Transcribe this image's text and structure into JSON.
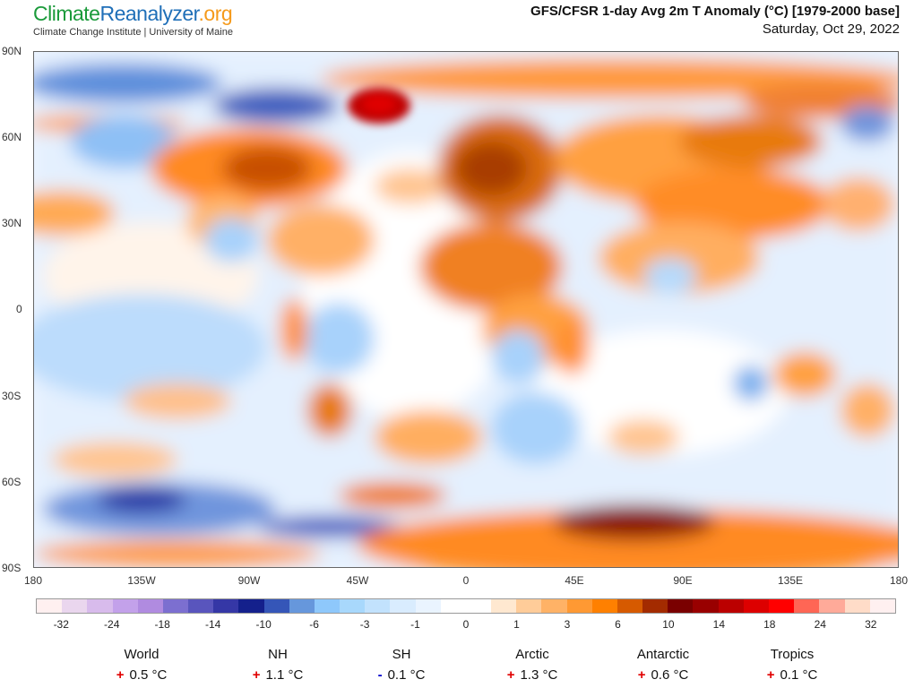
{
  "header": {
    "logo_parts": [
      "Climate",
      "Reanalyzer",
      ".org"
    ],
    "institution": "Climate Change Institute | University of Maine",
    "title": "GFS/CFSR 1-day Avg 2m T Anomaly (°C) [1979-2000 base]",
    "date": "Saturday, Oct 29, 2022"
  },
  "map": {
    "variable": "2m temperature anomaly",
    "lat_labels": [
      "90N",
      "60N",
      "30N",
      "0",
      "30S",
      "60S",
      "90S"
    ],
    "lon_labels": [
      "180",
      "135W",
      "90W",
      "45W",
      "0",
      "45E",
      "90E",
      "135E",
      "180"
    ]
  },
  "colorbar": {
    "colors": [
      "#fff0f0",
      "#ead6ee",
      "#d8bbec",
      "#c3a1ea",
      "#b08be0",
      "#7c6fd0",
      "#5955bd",
      "#3537a6",
      "#14208c",
      "#3556b8",
      "#6697dc",
      "#8ec8fb",
      "#a8d8fc",
      "#c2e2fd",
      "#d9ecfe",
      "#eaf4ff",
      "#ffffff",
      "#ffffff",
      "#ffe8d0",
      "#ffcc99",
      "#ffb266",
      "#ff9933",
      "#ff8000",
      "#d65a00",
      "#a32b00",
      "#7a0000",
      "#990000",
      "#bb0000",
      "#dd0000",
      "#ff0000",
      "#ff6655",
      "#ffaa99",
      "#ffdcc8",
      "#fff0f0"
    ],
    "labels": [
      "-32",
      "-24",
      "-18",
      "-14",
      "-10",
      "-6",
      "-3",
      "-1",
      "0",
      "1",
      "3",
      "6",
      "10",
      "14",
      "18",
      "24",
      "32"
    ]
  },
  "stats": [
    {
      "name": "World",
      "sign": "+",
      "value": "0.5 °C"
    },
    {
      "name": "NH",
      "sign": "+",
      "value": "1.1 °C"
    },
    {
      "name": "SH",
      "sign": "-",
      "value": "0.1 °C"
    },
    {
      "name": "Arctic",
      "sign": "+",
      "value": "1.3 °C"
    },
    {
      "name": "Antarctic",
      "sign": "+",
      "value": "0.6 °C"
    },
    {
      "name": "Tropics",
      "sign": "+",
      "value": "0.1 °C"
    }
  ],
  "colors": {
    "positive_sign": "#e00000",
    "negative_sign": "#0000cc"
  }
}
